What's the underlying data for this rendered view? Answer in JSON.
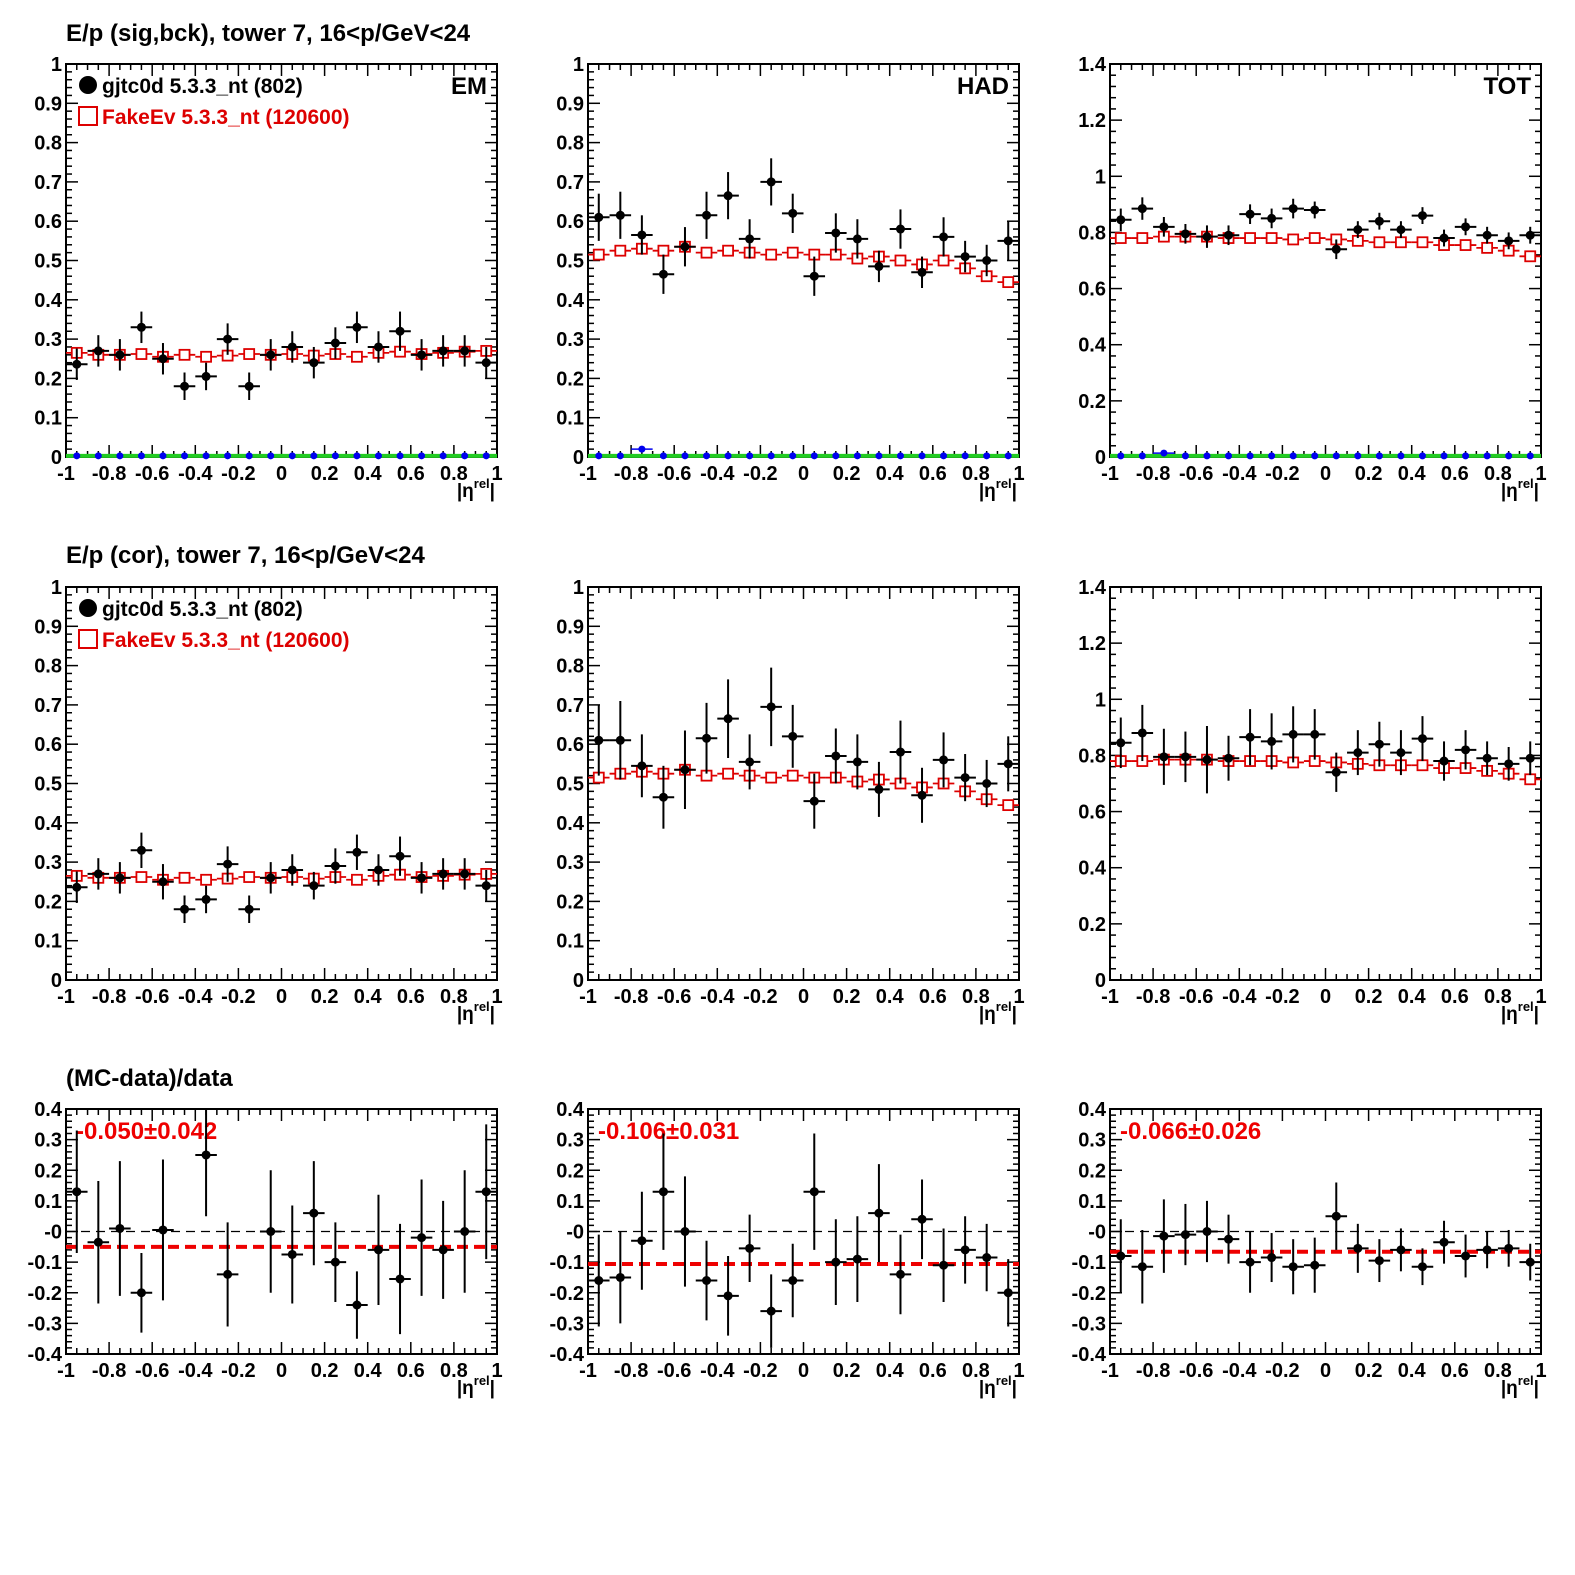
{
  "row_titles": [
    "E/p (sig,bck), tower 7, 16<p/GeV<24",
    "E/p (cor), tower 7, 16<p/GeV<24",
    "(MC-data)/data"
  ],
  "legend": {
    "data_label": "gjtc0d 5.3.3_nt (802)",
    "mc_label": "FakeEv 5.3.3_nt (120600)"
  },
  "colors": {
    "data": "#000000",
    "mc": "#dd0000",
    "bkg_blue": "#0000ee",
    "bkg_green": "#22cc22",
    "fit": "#ee0000"
  },
  "xlabel": "|ηrel|",
  "chart_data": [
    {
      "type": "scatter",
      "panel": "row1-EM",
      "title": "E/p (sig,bck), tower 7, 16<p/GeV<24",
      "corner_label": "EM",
      "xlim": [
        -1,
        1
      ],
      "ylim": [
        0,
        1
      ],
      "x": [
        -0.95,
        -0.85,
        -0.75,
        -0.65,
        -0.55,
        -0.45,
        -0.35,
        -0.25,
        -0.15,
        -0.05,
        0.05,
        0.15,
        0.25,
        0.35,
        0.45,
        0.55,
        0.65,
        0.75,
        0.85,
        0.95
      ],
      "series": [
        {
          "name": "gjtc0d 5.3.3_nt (802)",
          "values": [
            0.236,
            0.27,
            0.26,
            0.33,
            0.25,
            0.18,
            0.205,
            0.3,
            0.18,
            0.26,
            0.28,
            0.24,
            0.29,
            0.33,
            0.28,
            0.32,
            0.26,
            0.27,
            0.27,
            0.24
          ],
          "errors": [
            0.04,
            0.04,
            0.04,
            0.04,
            0.04,
            0.035,
            0.035,
            0.04,
            0.035,
            0.04,
            0.04,
            0.04,
            0.04,
            0.04,
            0.04,
            0.05,
            0.04,
            0.04,
            0.04,
            0.04
          ]
        },
        {
          "name": "FakeEv 5.3.3_nt (120600)",
          "values": [
            0.265,
            0.26,
            0.26,
            0.262,
            0.255,
            0.26,
            0.255,
            0.258,
            0.262,
            0.26,
            0.262,
            0.258,
            0.262,
            0.255,
            0.265,
            0.268,
            0.262,
            0.265,
            0.268,
            0.27
          ]
        },
        {
          "values": [
            0.003,
            0.003,
            0.003,
            0.003,
            0.003,
            0.003,
            0.003,
            0.003,
            0.003,
            0.003,
            0.003,
            0.003,
            0.003,
            0.003,
            0.003,
            0.003,
            0.003,
            0.003,
            0.003,
            0.003
          ]
        }
      ]
    },
    {
      "type": "scatter",
      "panel": "row1-HAD",
      "corner_label": "HAD",
      "xlim": [
        -1,
        1
      ],
      "ylim": [
        0,
        1
      ],
      "x": [
        -0.95,
        -0.85,
        -0.75,
        -0.65,
        -0.55,
        -0.45,
        -0.35,
        -0.25,
        -0.15,
        -0.05,
        0.05,
        0.15,
        0.25,
        0.35,
        0.45,
        0.55,
        0.65,
        0.75,
        0.85,
        0.95
      ],
      "series": [
        {
          "name": "gjtc0d 5.3.3_nt (802)",
          "values": [
            0.61,
            0.615,
            0.565,
            0.465,
            0.535,
            0.615,
            0.665,
            0.555,
            0.7,
            0.62,
            0.46,
            0.57,
            0.555,
            0.485,
            0.58,
            0.47,
            0.56,
            0.51,
            0.5,
            0.55
          ],
          "errors": [
            0.06,
            0.06,
            0.05,
            0.05,
            0.05,
            0.06,
            0.06,
            0.05,
            0.06,
            0.05,
            0.05,
            0.05,
            0.05,
            0.04,
            0.05,
            0.04,
            0.05,
            0.04,
            0.04,
            0.05
          ]
        },
        {
          "name": "FakeEv 5.3.3_nt (120600)",
          "values": [
            0.515,
            0.525,
            0.53,
            0.525,
            0.535,
            0.52,
            0.525,
            0.52,
            0.515,
            0.52,
            0.515,
            0.515,
            0.505,
            0.51,
            0.5,
            0.49,
            0.5,
            0.48,
            0.46,
            0.445
          ]
        },
        {
          "values": [
            0.003,
            0.003,
            0.02,
            0.003,
            0.003,
            0.003,
            0.003,
            0.003,
            0.003,
            0.003,
            0.003,
            0.003,
            0.003,
            0.003,
            0.003,
            0.003,
            0.003,
            0.003,
            0.003,
            0.003
          ]
        }
      ]
    },
    {
      "type": "scatter",
      "panel": "row1-TOT",
      "corner_label": "TOT",
      "xlim": [
        -1,
        1
      ],
      "ylim": [
        0,
        1.4
      ],
      "x": [
        -0.95,
        -0.85,
        -0.75,
        -0.65,
        -0.55,
        -0.45,
        -0.35,
        -0.25,
        -0.15,
        -0.05,
        0.05,
        0.15,
        0.25,
        0.35,
        0.45,
        0.55,
        0.65,
        0.75,
        0.85,
        0.95
      ],
      "series": [
        {
          "name": "gjtc0d 5.3.3_nt (802)",
          "values": [
            0.845,
            0.885,
            0.82,
            0.795,
            0.785,
            0.79,
            0.865,
            0.85,
            0.885,
            0.88,
            0.74,
            0.81,
            0.84,
            0.81,
            0.86,
            0.78,
            0.82,
            0.79,
            0.77,
            0.79
          ],
          "errors": [
            0.04,
            0.04,
            0.035,
            0.035,
            0.04,
            0.035,
            0.035,
            0.035,
            0.035,
            0.03,
            0.035,
            0.03,
            0.03,
            0.03,
            0.03,
            0.03,
            0.03,
            0.03,
            0.03,
            0.03
          ]
        },
        {
          "name": "FakeEv 5.3.3_nt (120600)",
          "values": [
            0.78,
            0.78,
            0.785,
            0.785,
            0.785,
            0.78,
            0.78,
            0.78,
            0.775,
            0.78,
            0.775,
            0.77,
            0.765,
            0.765,
            0.765,
            0.755,
            0.755,
            0.745,
            0.735,
            0.715
          ]
        },
        {
          "values": [
            0.004,
            0.004,
            0.014,
            0.004,
            0.004,
            0.004,
            0.004,
            0.004,
            0.004,
            0.004,
            0.004,
            0.004,
            0.004,
            0.004,
            0.004,
            0.004,
            0.004,
            0.004,
            0.004,
            0.004
          ]
        }
      ]
    },
    {
      "type": "scatter",
      "panel": "row2-EM",
      "title": "E/p (cor), tower 7, 16<p/GeV<24",
      "xlim": [
        -1,
        1
      ],
      "ylim": [
        0,
        1
      ],
      "x": [
        -0.95,
        -0.85,
        -0.75,
        -0.65,
        -0.55,
        -0.45,
        -0.35,
        -0.25,
        -0.15,
        -0.05,
        0.05,
        0.15,
        0.25,
        0.35,
        0.45,
        0.55,
        0.65,
        0.75,
        0.85,
        0.95
      ],
      "series": [
        {
          "name": "gjtc0d 5.3.3_nt (802)",
          "values": [
            0.236,
            0.27,
            0.26,
            0.33,
            0.25,
            0.18,
            0.205,
            0.295,
            0.18,
            0.26,
            0.28,
            0.24,
            0.29,
            0.325,
            0.28,
            0.315,
            0.26,
            0.27,
            0.27,
            0.24
          ],
          "errors": [
            0.04,
            0.04,
            0.04,
            0.045,
            0.045,
            0.035,
            0.035,
            0.045,
            0.035,
            0.04,
            0.04,
            0.035,
            0.045,
            0.045,
            0.04,
            0.05,
            0.04,
            0.04,
            0.04,
            0.04
          ]
        },
        {
          "name": "FakeEv 5.3.3_nt (120600)",
          "values": [
            0.265,
            0.26,
            0.26,
            0.262,
            0.255,
            0.26,
            0.255,
            0.258,
            0.262,
            0.26,
            0.262,
            0.258,
            0.262,
            0.255,
            0.265,
            0.268,
            0.262,
            0.265,
            0.268,
            0.27
          ]
        }
      ]
    },
    {
      "type": "scatter",
      "panel": "row2-HAD",
      "xlim": [
        -1,
        1
      ],
      "ylim": [
        0,
        1
      ],
      "x": [
        -0.95,
        -0.85,
        -0.75,
        -0.65,
        -0.55,
        -0.45,
        -0.35,
        -0.25,
        -0.15,
        -0.05,
        0.05,
        0.15,
        0.25,
        0.35,
        0.45,
        0.55,
        0.65,
        0.75,
        0.85,
        0.95
      ],
      "series": [
        {
          "name": "gjtc0d 5.3.3_nt (802)",
          "values": [
            0.61,
            0.61,
            0.545,
            0.465,
            0.535,
            0.615,
            0.665,
            0.555,
            0.695,
            0.62,
            0.455,
            0.57,
            0.555,
            0.485,
            0.58,
            0.47,
            0.56,
            0.515,
            0.5,
            0.55
          ],
          "errors": [
            0.09,
            0.1,
            0.08,
            0.08,
            0.1,
            0.09,
            0.1,
            0.07,
            0.1,
            0.08,
            0.07,
            0.07,
            0.07,
            0.07,
            0.08,
            0.07,
            0.07,
            0.06,
            0.06,
            0.07
          ]
        },
        {
          "name": "FakeEv 5.3.3_nt (120600)",
          "values": [
            0.515,
            0.525,
            0.53,
            0.525,
            0.535,
            0.52,
            0.525,
            0.52,
            0.515,
            0.52,
            0.515,
            0.515,
            0.505,
            0.51,
            0.5,
            0.49,
            0.5,
            0.48,
            0.46,
            0.445
          ]
        }
      ]
    },
    {
      "type": "scatter",
      "panel": "row2-TOT",
      "xlim": [
        -1,
        1
      ],
      "ylim": [
        0,
        1.4
      ],
      "x": [
        -0.95,
        -0.85,
        -0.75,
        -0.65,
        -0.55,
        -0.45,
        -0.35,
        -0.25,
        -0.15,
        -0.05,
        0.05,
        0.15,
        0.25,
        0.35,
        0.45,
        0.55,
        0.65,
        0.75,
        0.85,
        0.95
      ],
      "series": [
        {
          "name": "gjtc0d 5.3.3_nt (802)",
          "values": [
            0.845,
            0.88,
            0.795,
            0.795,
            0.785,
            0.79,
            0.865,
            0.85,
            0.875,
            0.875,
            0.74,
            0.81,
            0.84,
            0.81,
            0.86,
            0.78,
            0.82,
            0.79,
            0.77,
            0.79
          ],
          "errors": [
            0.09,
            0.1,
            0.1,
            0.09,
            0.12,
            0.08,
            0.1,
            0.1,
            0.1,
            0.09,
            0.07,
            0.08,
            0.08,
            0.08,
            0.08,
            0.07,
            0.07,
            0.06,
            0.06,
            0.06
          ]
        },
        {
          "name": "FakeEv 5.3.3_nt (120600)",
          "values": [
            0.78,
            0.78,
            0.785,
            0.785,
            0.785,
            0.78,
            0.78,
            0.78,
            0.775,
            0.78,
            0.775,
            0.77,
            0.765,
            0.765,
            0.765,
            0.755,
            0.755,
            0.745,
            0.735,
            0.715
          ]
        }
      ]
    },
    {
      "type": "scatter",
      "panel": "row3-EM",
      "title": "(MC-data)/data",
      "fit_label": "-0.050±0.042",
      "fit_value": -0.05,
      "xlim": [
        -1,
        1
      ],
      "ylim": [
        -0.4,
        0.4
      ],
      "x": [
        -0.95,
        -0.85,
        -0.75,
        -0.65,
        -0.55,
        -0.45,
        -0.35,
        -0.25,
        -0.15,
        -0.05,
        0.05,
        0.15,
        0.25,
        0.35,
        0.45,
        0.55,
        0.65,
        0.75,
        0.85,
        0.95
      ],
      "series": [
        {
          "name": "gjtc0d 5.3.3_nt (802)",
          "values": [
            0.13,
            -0.035,
            0.01,
            -0.2,
            0.005,
            null,
            0.25,
            -0.14,
            null,
            0.0,
            -0.075,
            0.06,
            -0.1,
            -0.24,
            -0.06,
            -0.155,
            -0.02,
            -0.06,
            0.0,
            0.13
          ],
          "errors": [
            0.2,
            0.2,
            0.22,
            0.13,
            0.23,
            null,
            0.2,
            0.17,
            null,
            0.2,
            0.16,
            0.17,
            0.13,
            0.11,
            0.18,
            0.18,
            0.19,
            0.16,
            0.2,
            0.22
          ]
        }
      ]
    },
    {
      "type": "scatter",
      "panel": "row3-HAD",
      "fit_label": "-0.106±0.031",
      "fit_value": -0.106,
      "xlim": [
        -1,
        1
      ],
      "ylim": [
        -0.4,
        0.4
      ],
      "x": [
        -0.95,
        -0.85,
        -0.75,
        -0.65,
        -0.55,
        -0.45,
        -0.35,
        -0.25,
        -0.15,
        -0.05,
        0.05,
        0.15,
        0.25,
        0.35,
        0.45,
        0.55,
        0.65,
        0.75,
        0.85,
        0.95
      ],
      "series": [
        {
          "name": "gjtc0d 5.3.3_nt (802)",
          "values": [
            -0.16,
            -0.15,
            -0.03,
            0.13,
            0.0,
            -0.16,
            -0.21,
            -0.055,
            -0.26,
            -0.16,
            0.13,
            -0.1,
            -0.09,
            0.06,
            -0.14,
            0.04,
            -0.11,
            -0.06,
            -0.085,
            -0.2
          ],
          "errors": [
            0.15,
            0.15,
            0.16,
            0.19,
            0.18,
            0.13,
            0.13,
            0.11,
            0.12,
            0.12,
            0.19,
            0.14,
            0.14,
            0.16,
            0.13,
            0.13,
            0.12,
            0.11,
            0.11,
            0.11
          ]
        }
      ]
    },
    {
      "type": "scatter",
      "panel": "row3-TOT",
      "fit_label": "-0.066±0.026",
      "fit_value": -0.066,
      "xlim": [
        -1,
        1
      ],
      "ylim": [
        -0.4,
        0.4
      ],
      "x": [
        -0.95,
        -0.85,
        -0.75,
        -0.65,
        -0.55,
        -0.45,
        -0.35,
        -0.25,
        -0.15,
        -0.05,
        0.05,
        0.15,
        0.25,
        0.35,
        0.45,
        0.55,
        0.65,
        0.75,
        0.85,
        0.95
      ],
      "series": [
        {
          "name": "gjtc0d 5.3.3_nt (802)",
          "values": [
            -0.08,
            -0.115,
            -0.015,
            -0.01,
            0.0,
            -0.025,
            -0.1,
            -0.085,
            -0.115,
            -0.11,
            0.05,
            -0.055,
            -0.095,
            -0.06,
            -0.115,
            -0.035,
            -0.08,
            -0.06,
            -0.055,
            -0.1
          ],
          "errors": [
            0.12,
            0.12,
            0.12,
            0.1,
            0.1,
            0.08,
            0.1,
            0.08,
            0.09,
            0.09,
            0.11,
            0.08,
            0.07,
            0.07,
            0.06,
            0.07,
            0.07,
            0.06,
            0.06,
            0.06
          ]
        }
      ]
    }
  ]
}
